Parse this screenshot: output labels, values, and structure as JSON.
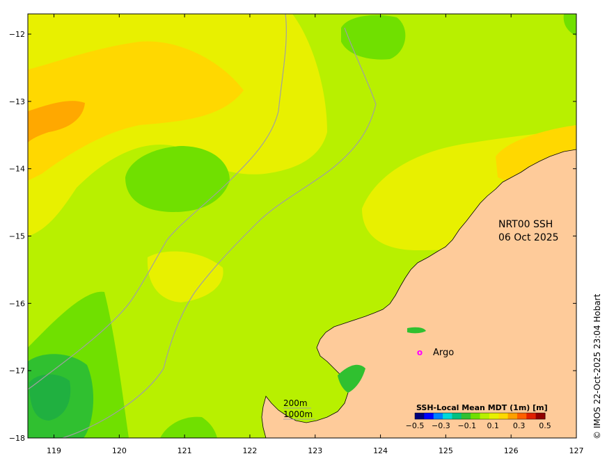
{
  "map": {
    "title_line1": "NRT00 SSH",
    "title_line2": "06 Oct 2025",
    "argo_label": "Argo",
    "argo_marker": "o",
    "depth_200": "200m",
    "depth_1000": "1000m",
    "credit": "© IMOS 22-Oct-2025 23:04 Hobart"
  },
  "axes": {
    "x_ticks": [
      "119",
      "120",
      "121",
      "122",
      "123",
      "124",
      "125",
      "126",
      "127"
    ],
    "y_ticks": [
      "−12",
      "−13",
      "−14",
      "−15",
      "−16",
      "−17",
      "−18"
    ],
    "x_values": [
      119,
      120,
      121,
      122,
      123,
      124,
      125,
      126,
      127
    ],
    "y_values": [
      -12,
      -13,
      -14,
      -15,
      -16,
      -17,
      -18
    ],
    "xlim": [
      118.6,
      127
    ],
    "ylim": [
      -18,
      -11.7
    ]
  },
  "legend": {
    "title": "SSH-Local Mean MDT (1m) [m]",
    "tick_labels": [
      "−0.5",
      "−0.3",
      "−0.1",
      "0.1",
      "0.3",
      "0.5"
    ],
    "colors": [
      "#00007a",
      "#0000ff",
      "#0080ff",
      "#00d8d8",
      "#00c080",
      "#30c030",
      "#70e000",
      "#b8f000",
      "#e8f000",
      "#ffd800",
      "#ffa000",
      "#ff6000",
      "#e02000",
      "#900000"
    ]
  },
  "colors": {
    "land": "#fecb9a",
    "coastline": "#000000",
    "bathymetry": "#a0a0a0",
    "argo": "#ff00ff"
  }
}
